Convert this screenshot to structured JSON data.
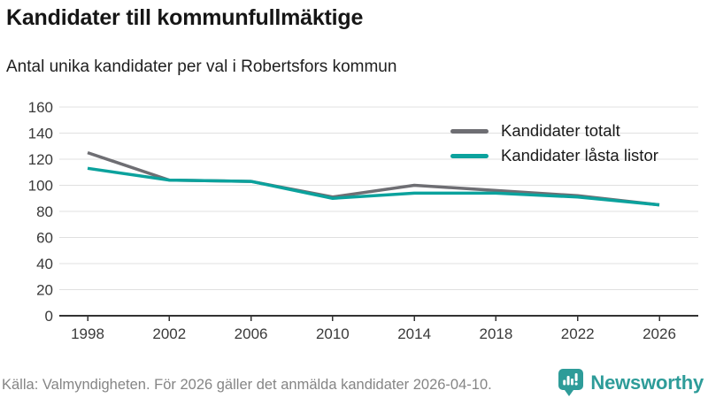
{
  "title": "Kandidater till kommunfullmäktige",
  "subtitle": "Antal unika kandidater per val i Robertsfors kommun",
  "footer": {
    "source": "Källa: Valmyndigheten. För 2026 gäller det anmälda kandidater 2026-04-10."
  },
  "branding": {
    "name": "Newsworthy",
    "icon": "bar-chart-speech-bubble-icon",
    "color": "#2E9C99"
  },
  "legend": [
    {
      "label": "Kandidater totalt",
      "color": "#6E6E73"
    },
    {
      "label": "Kandidater låsta listor",
      "color": "#0BA29D"
    }
  ],
  "colors": {
    "grid": "#E0E0E0",
    "axis": "#333333",
    "tick_text": "#3A3A3A"
  },
  "chart_data": {
    "type": "line",
    "title": "Kandidater till kommunfullmäktige",
    "subtitle": "Antal unika kandidater per val i Robertsfors kommun",
    "categories": [
      "1998",
      "2002",
      "2006",
      "2010",
      "2014",
      "2018",
      "2022",
      "2026"
    ],
    "series": [
      {
        "name": "Kandidater totalt",
        "color": "#6E6E73",
        "values": [
          125,
          104,
          103,
          91,
          100,
          96,
          92,
          85
        ]
      },
      {
        "name": "Kandidater låsta listor",
        "color": "#0BA29D",
        "values": [
          113,
          104,
          103,
          90,
          94,
          94,
          91,
          85
        ]
      }
    ],
    "xlabel": "",
    "ylabel": "",
    "ylim": [
      0,
      160
    ],
    "ytick_step": 20,
    "grid": "horizontal",
    "legend_position": "top-right"
  }
}
